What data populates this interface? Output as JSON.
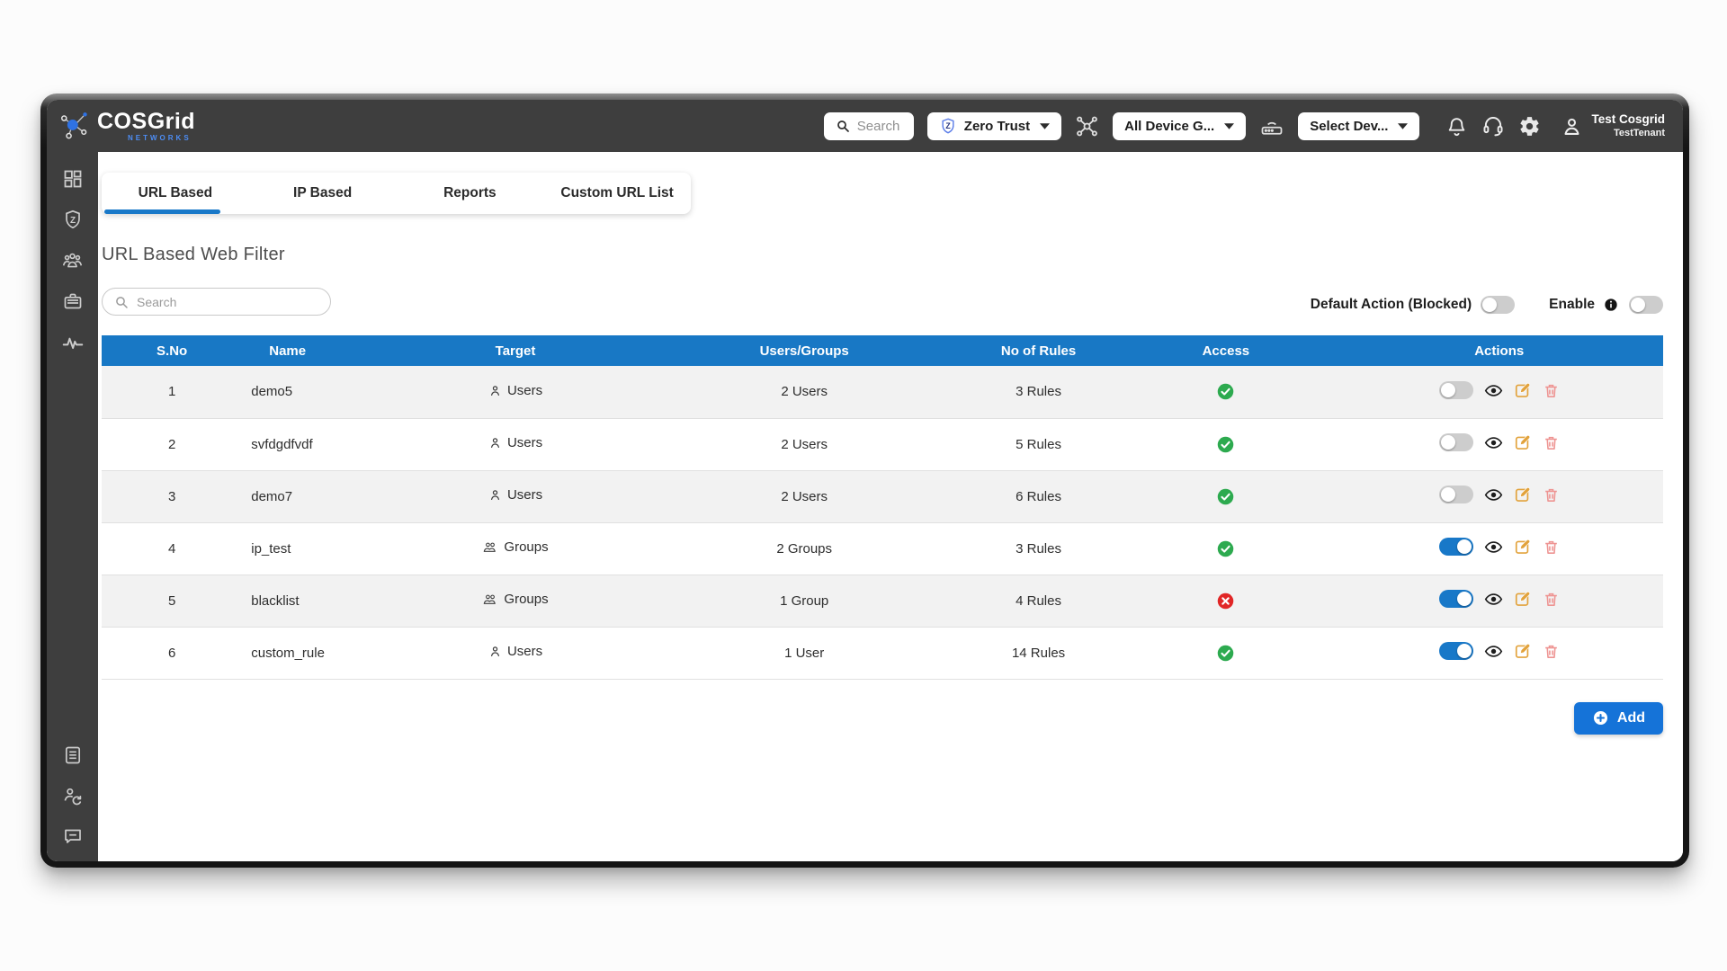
{
  "header": {
    "logo": {
      "brand_part1": "COS",
      "brand_part2": "Grid",
      "subtitle": "NETWORKS"
    },
    "search_label": "Search",
    "zero_trust_label": "Zero Trust",
    "device_group_label": "All Device G...",
    "select_device_label": "Select Dev...",
    "user": {
      "name": "Test Cosgrid",
      "tenant": "TestTenant"
    },
    "icons": [
      "search-icon",
      "zero-trust-shield-icon",
      "topology-icon",
      "router-icon",
      "notifications-bell-icon",
      "support-headset-icon",
      "settings-gear-icon",
      "user-avatar-icon"
    ]
  },
  "sidebar": {
    "top_icons": [
      "dashboard-grid-icon",
      "zero-trust-shield-icon",
      "users-group-icon",
      "briefcase-icon",
      "activity-pulse-icon"
    ],
    "bottom_icons": [
      "document-icon",
      "user-sync-icon",
      "chat-bubble-icon"
    ]
  },
  "tabs": [
    {
      "label": "URL Based",
      "active": true
    },
    {
      "label": "IP Based",
      "active": false
    },
    {
      "label": "Reports",
      "active": false
    },
    {
      "label": "Custom URL List",
      "active": false
    }
  ],
  "page": {
    "title": "URL Based Web Filter"
  },
  "filters": {
    "search_placeholder": "Search",
    "default_action_label": "Default Action (Blocked)",
    "default_action_enabled": false,
    "enable_label": "Enable",
    "enable_enabled": false
  },
  "table": {
    "columns": [
      "S.No",
      "Name",
      "Target",
      "Users/Groups",
      "No of Rules",
      "Access",
      "Actions"
    ],
    "rows": [
      {
        "sno": "1",
        "name": "demo5",
        "target": "Users",
        "target_type": "users",
        "users_groups": "2 Users",
        "no_of_rules": "3 Rules",
        "access": "allowed",
        "enabled": false
      },
      {
        "sno": "2",
        "name": "svfdgdfvdf",
        "target": "Users",
        "target_type": "users",
        "users_groups": "2 Users",
        "no_of_rules": "5 Rules",
        "access": "allowed",
        "enabled": false
      },
      {
        "sno": "3",
        "name": "demo7",
        "target": "Users",
        "target_type": "users",
        "users_groups": "2 Users",
        "no_of_rules": "6 Rules",
        "access": "allowed",
        "enabled": false
      },
      {
        "sno": "4",
        "name": "ip_test",
        "target": "Groups",
        "target_type": "groups",
        "users_groups": "2 Groups",
        "no_of_rules": "3 Rules",
        "access": "allowed",
        "enabled": true
      },
      {
        "sno": "5",
        "name": "blacklist",
        "target": "Groups",
        "target_type": "groups",
        "users_groups": "1 Group",
        "no_of_rules": "4 Rules",
        "access": "blocked",
        "enabled": true
      },
      {
        "sno": "6",
        "name": "custom_rule",
        "target": "Users",
        "target_type": "users",
        "users_groups": "1 User",
        "no_of_rules": "14 Rules",
        "access": "allowed",
        "enabled": true
      }
    ]
  },
  "actions": {
    "add_label": "Add"
  },
  "colors": {
    "topbar_bg": "#3e3e3e",
    "table_header_blue": "#1878c5",
    "accent_blue": "#1878c8",
    "add_button_blue": "#1573d8",
    "allowed_green": "#2daa4f",
    "blocked_red": "#e12626",
    "edit_orange": "#e2a23b",
    "delete_pink": "#ee9492",
    "row_alt_gray": "#f2f2f2"
  }
}
